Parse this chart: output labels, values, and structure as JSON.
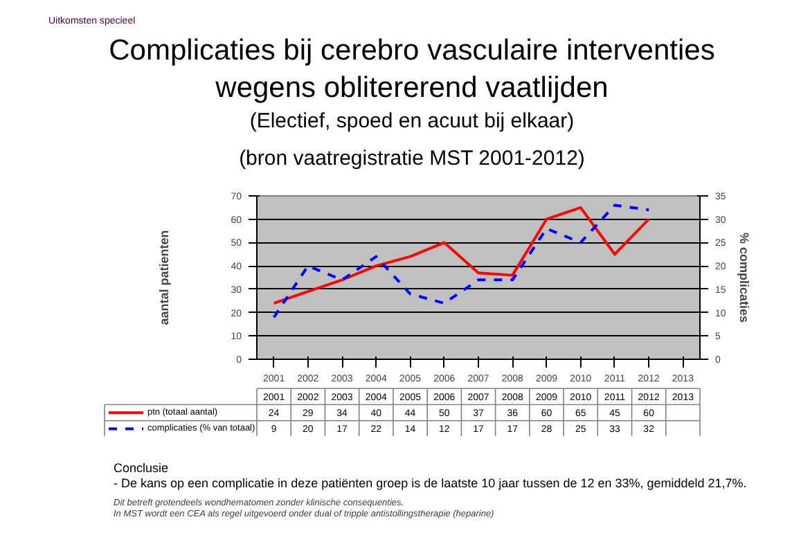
{
  "chart_data": {
    "type": "line",
    "title": "Complicaties bij cerebro vasculaire interventies wegens oblitererend vaatlijden",
    "subtitle": "(Electief, spoed en acuut bij elkaar)",
    "ylabel": "aantal patienten",
    "y2label": "% complicaties",
    "categories": [
      "2001",
      "2002",
      "2003",
      "2004",
      "2005",
      "2006",
      "2007",
      "2008",
      "2009",
      "2010",
      "2011",
      "2012",
      "2013"
    ],
    "series": [
      {
        "name": "ptn (totaal aantal)",
        "color": "#ff0000",
        "values": [
          24,
          29,
          34,
          40,
          44,
          50,
          37,
          36,
          60,
          65,
          45,
          60,
          null
        ],
        "line_style": "solid"
      },
      {
        "name": "complicaties (% van totaal)",
        "color": "#0000ff",
        "values": [
          9,
          20,
          17,
          22,
          14,
          12,
          17,
          17,
          28,
          25,
          33,
          32,
          null
        ],
        "axis": "y2",
        "line_style": "dashed"
      }
    ],
    "ylim": [
      0,
      70
    ],
    "yticks": [
      0,
      10,
      20,
      30,
      40,
      50,
      60,
      70
    ],
    "y2lim": [
      0,
      35
    ],
    "y2ticks": [
      0,
      5,
      10,
      15,
      20,
      25,
      30,
      35
    ],
    "grid": "y",
    "legend": "bottom",
    "data_labels": true,
    "annotations": [
      "Uitkomsten specieel",
      "(bron vaatregistratie MST 2001-2012)",
      "Conclusie",
      "- De kans op een complicatie in deze patiënten groep is de laatste 10 jaar tussen de 12 en 33%, gemiddeld 21,7%.",
      "Dit betreft grotendeels wondhematomen zonder klinische consequenties.",
      "In MST wordt een CEA als regel uitgevoerd onder dual of tripple antistollingstherapie (heparine)"
    ]
  }
}
